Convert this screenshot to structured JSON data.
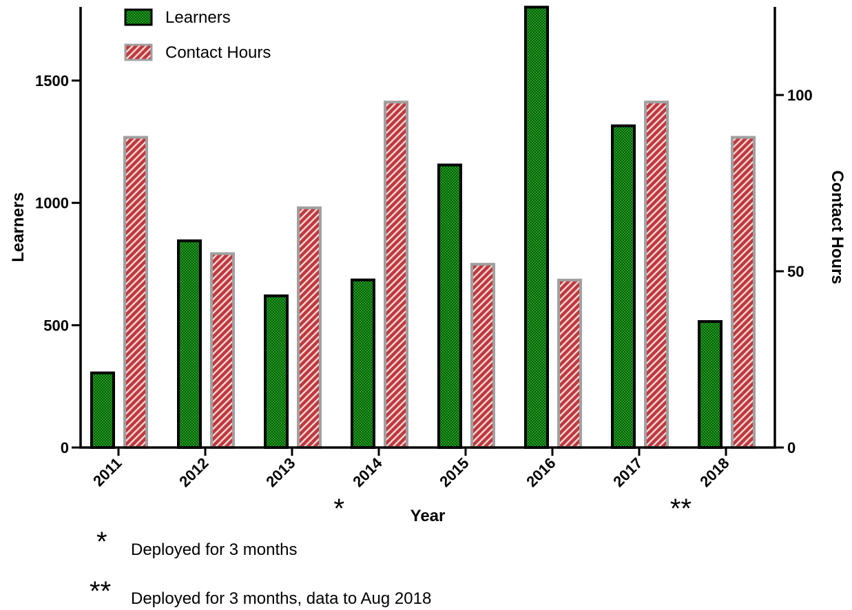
{
  "chart_data": {
    "type": "bar",
    "categories": [
      "2011",
      "2012",
      "2013",
      "2014",
      "2015",
      "2016",
      "2017",
      "2018"
    ],
    "category_markers": [
      "",
      "",
      "",
      "*",
      "",
      "",
      "",
      "**"
    ],
    "series": [
      {
        "name": "Learners",
        "axis": "left",
        "color": "#1f9e1f",
        "edge": "#000000",
        "values": [
          305,
          845,
          620,
          685,
          1155,
          1800,
          1315,
          515
        ]
      },
      {
        "name": "Contact Hours",
        "axis": "right",
        "color": "#c0383d",
        "edge": "#a0a0a0",
        "values": [
          88,
          55,
          68,
          98,
          52,
          47.5,
          98,
          88
        ]
      }
    ],
    "xlabel": "Year",
    "ylabel": "Learners",
    "y2label": "Contact Hours",
    "ylim": [
      0,
      1800
    ],
    "y2lim": [
      0,
      125
    ],
    "yticks": [
      0,
      500,
      1000,
      1500
    ],
    "y2ticks": [
      0,
      50,
      100
    ],
    "legend_position": "top-left",
    "footnotes": [
      {
        "marker": "*",
        "text": "Deployed for 3 months"
      },
      {
        "marker": "**",
        "text": "Deployed for 3 months, data to Aug 2018"
      }
    ]
  }
}
